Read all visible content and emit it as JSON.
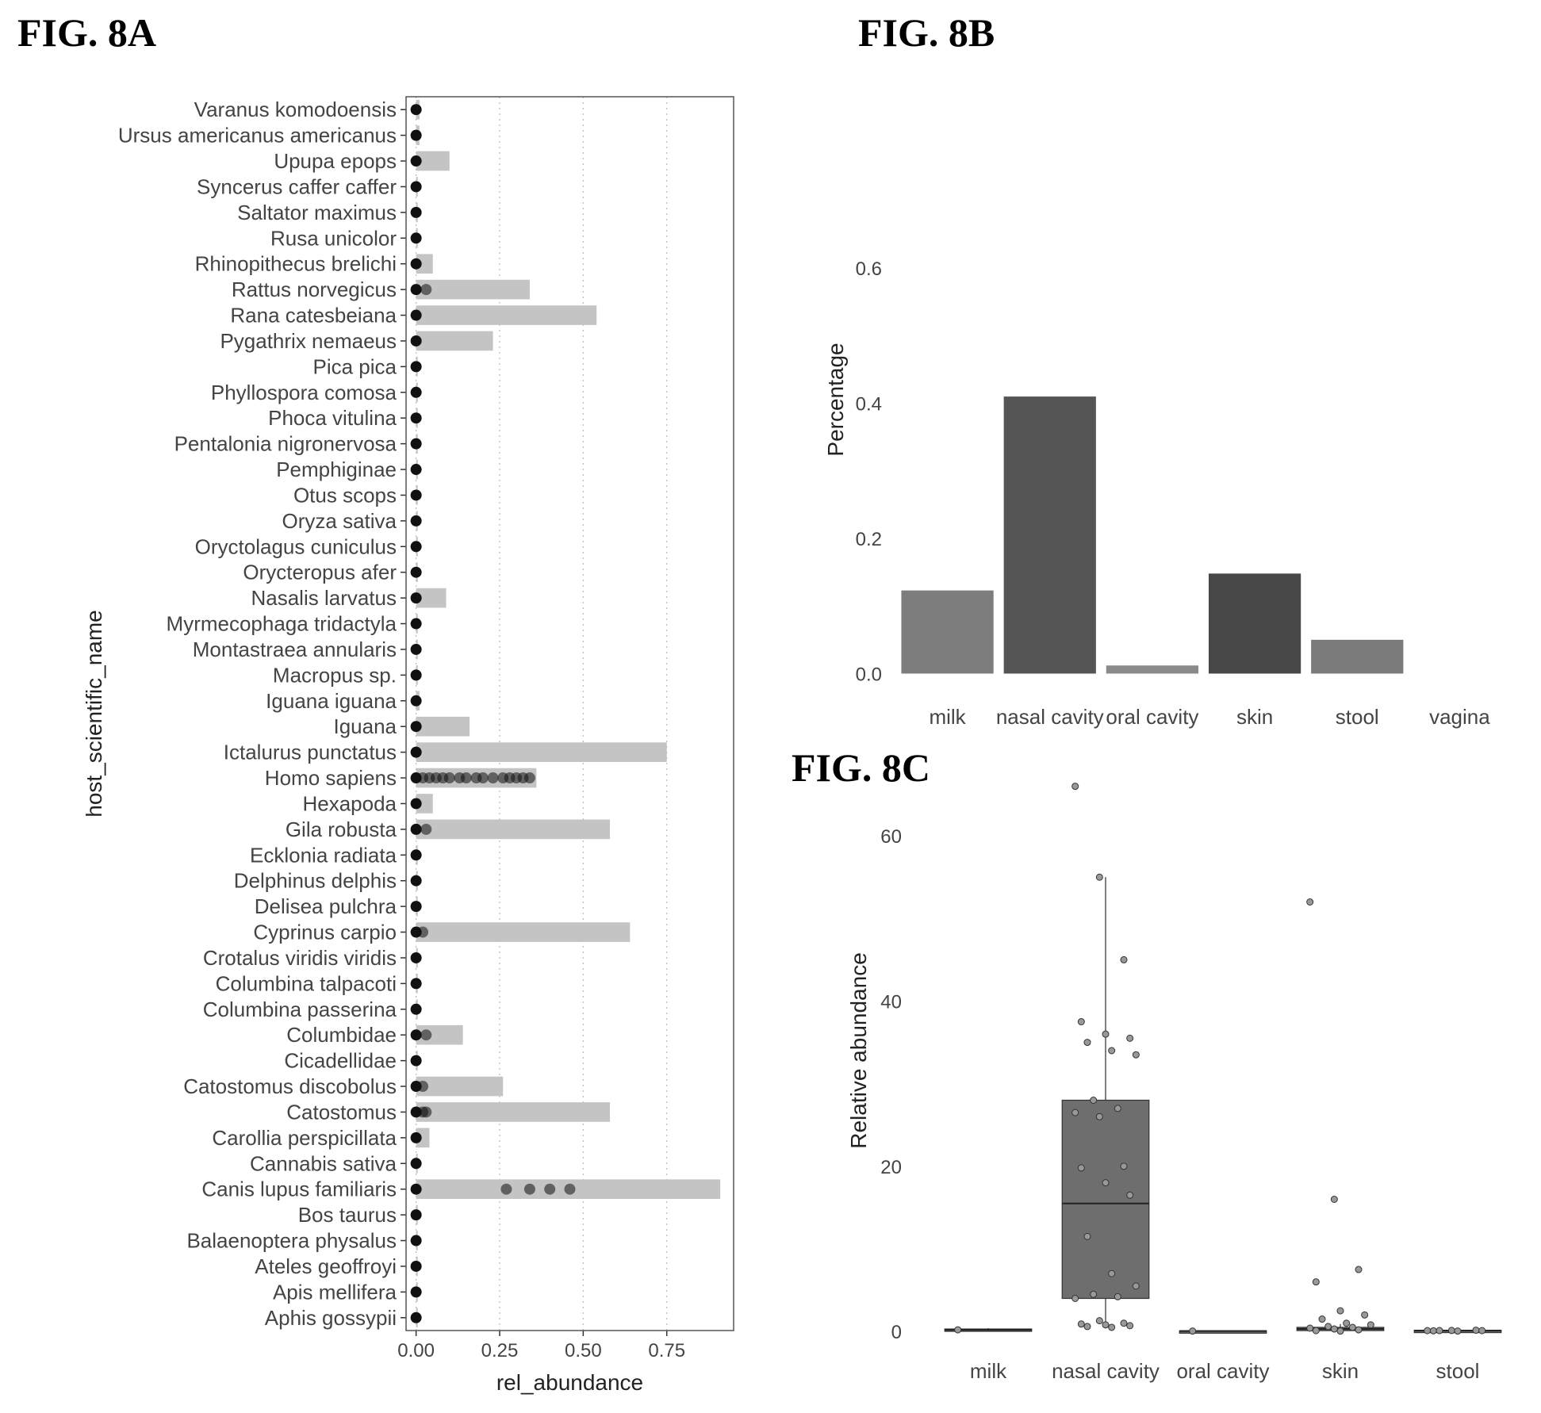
{
  "figures": {
    "a": {
      "label": "FIG. 8A"
    },
    "b": {
      "label": "FIG. 8B"
    },
    "c": {
      "label": "FIG. 8C"
    }
  },
  "chart_data": [
    {
      "id": "fig8a",
      "type": "bar",
      "orientation": "horizontal",
      "xlabel": "rel_abundance",
      "ylabel": "host_scientific_name",
      "xlim": [
        -0.03,
        0.95
      ],
      "xticks": [
        "0.00",
        "0.25",
        "0.50",
        "0.75"
      ],
      "xtick_values": [
        0,
        0.25,
        0.5,
        0.75
      ],
      "grid": "vertical dotted",
      "bar_color": "#c4c4c4",
      "point_color": "#111111",
      "categories": [
        "Varanus komodoensis",
        "Ursus americanus americanus",
        "Upupa epops",
        "Syncerus caffer caffer",
        "Saltator maximus",
        "Rusa unicolor",
        "Rhinopithecus brelichi",
        "Rattus norvegicus",
        "Rana catesbeiana",
        "Pygathrix nemaeus",
        "Pica pica",
        "Phyllospora comosa",
        "Phoca vitulina",
        "Pentalonia nigronervosa",
        "Pemphiginae",
        "Otus scops",
        "Oryza sativa",
        "Oryctolagus cuniculus",
        "Orycteropus afer",
        "Nasalis larvatus",
        "Myrmecophaga tridactyla",
        "Montastraea annularis",
        "Macropus sp.",
        "Iguana iguana",
        "Iguana",
        "Ictalurus punctatus",
        "Homo sapiens",
        "Hexapoda",
        "Gila robusta",
        "Ecklonia radiata",
        "Delphinus delphis",
        "Delisea pulchra",
        "Cyprinus carpio",
        "Crotalus viridis viridis",
        "Columbina talpacoti",
        "Columbina passerina",
        "Columbidae",
        "Cicadellidae",
        "Catostomus discobolus",
        "Catostomus",
        "Carollia perspicillata",
        "Cannabis sativa",
        "Canis lupus familiaris",
        "Bos taurus",
        "Balaenoptera physalus",
        "Ateles geoffroyi",
        "Apis mellifera",
        "Aphis gossypii"
      ],
      "values": [
        0.01,
        0.01,
        0.1,
        0.005,
        0.005,
        0.005,
        0.05,
        0.34,
        0.54,
        0.23,
        0.005,
        0.005,
        0.005,
        0.005,
        0.005,
        0.005,
        0.005,
        0.005,
        0.005,
        0.09,
        0.005,
        0.005,
        0.005,
        0.01,
        0.16,
        0.75,
        0.36,
        0.05,
        0.58,
        0.005,
        0.005,
        0.005,
        0.64,
        0.005,
        0.005,
        0.005,
        0.14,
        0.005,
        0.26,
        0.58,
        0.04,
        0.005,
        0.91,
        0.005,
        0.005,
        0.005,
        0.005,
        0.005
      ],
      "points": {
        "Rattus norvegicus": [
          0,
          0.03
        ],
        "Homo sapiens": [
          0,
          0.02,
          0.04,
          0.06,
          0.08,
          0.1,
          0.13,
          0.15,
          0.18,
          0.2,
          0.23,
          0.26,
          0.28,
          0.3,
          0.32,
          0.34
        ],
        "Gila robusta": [
          0,
          0.03
        ],
        "Cyprinus carpio": [
          0,
          0.02
        ],
        "Columbidae": [
          0,
          0.03
        ],
        "Catostomus discobolus": [
          0,
          0.02
        ],
        "Catostomus": [
          0,
          0.02,
          0.03
        ],
        "Canis lupus familiaris": [
          0,
          0.27,
          0.34,
          0.4,
          0.46
        ]
      }
    },
    {
      "id": "fig8b",
      "type": "bar",
      "ylabel": "Percentage",
      "xlabel": "",
      "ylim": [
        -0.01,
        0.68
      ],
      "yticks": [
        "0.0",
        "0.2",
        "0.4",
        "0.6"
      ],
      "ytick_values": [
        0,
        0.2,
        0.4,
        0.6
      ],
      "categories": [
        "milk",
        "nasal cavity",
        "oral cavity",
        "skin",
        "stool",
        "vagina"
      ],
      "values": [
        0.123,
        0.41,
        0.012,
        0.148,
        0.05,
        0
      ],
      "colors": [
        "#7d7d7d",
        "#555555",
        "#8a8a8a",
        "#474747",
        "#7a7a7a",
        "#888888"
      ]
    },
    {
      "id": "fig8c",
      "type": "box",
      "ylabel": "Relative abundance",
      "xlabel": "",
      "ylim": [
        -2,
        70
      ],
      "yticks": [
        "0",
        "20",
        "40",
        "60"
      ],
      "ytick_values": [
        0,
        20,
        40,
        60
      ],
      "categories": [
        "milk",
        "nasal cavity",
        "oral cavity",
        "skin",
        "stool"
      ],
      "boxes": [
        {
          "q1": 0.1,
          "median": 0.2,
          "q3": 0.3,
          "whisker_low": 0,
          "whisker_high": 0.4
        },
        {
          "q1": 4,
          "median": 15.5,
          "q3": 28,
          "whisker_low": 0.5,
          "whisker_high": 55
        },
        {
          "q1": 0.02,
          "median": 0.05,
          "q3": 0.08,
          "whisker_low": 0,
          "whisker_high": 0.1
        },
        {
          "q1": 0.1,
          "median": 0.3,
          "q3": 0.5,
          "whisker_low": 0,
          "whisker_high": 0.9
        },
        {
          "q1": 0.05,
          "median": 0.1,
          "q3": 0.15,
          "whisker_low": 0,
          "whisker_high": 0.2
        }
      ],
      "box_color": "#6e6e6e",
      "points": [
        {
          "group": "milk",
          "values": [
            0.2
          ]
        },
        {
          "group": "nasal cavity",
          "values": [
            66,
            55,
            45,
            37.5,
            36,
            35.5,
            35,
            34,
            33.5,
            28,
            27,
            26.5,
            26,
            20,
            19.8,
            18,
            16.5,
            11.5,
            7,
            5.5,
            4.5,
            4.2,
            4,
            1.3,
            1,
            0.9,
            0.8,
            0.7,
            0.6,
            0.5
          ]
        },
        {
          "group": "oral cavity",
          "values": [
            0.05
          ]
        },
        {
          "group": "skin",
          "values": [
            52,
            16,
            7.5,
            6,
            2.5,
            2,
            1.5,
            1,
            0.8,
            0.6,
            0.5,
            0.4,
            0.3,
            0.2,
            0.1,
            0.05
          ]
        },
        {
          "group": "stool",
          "values": [
            0.1,
            0.12,
            0.15,
            0.08,
            0.05,
            0.1,
            0.11
          ]
        }
      ]
    }
  ]
}
